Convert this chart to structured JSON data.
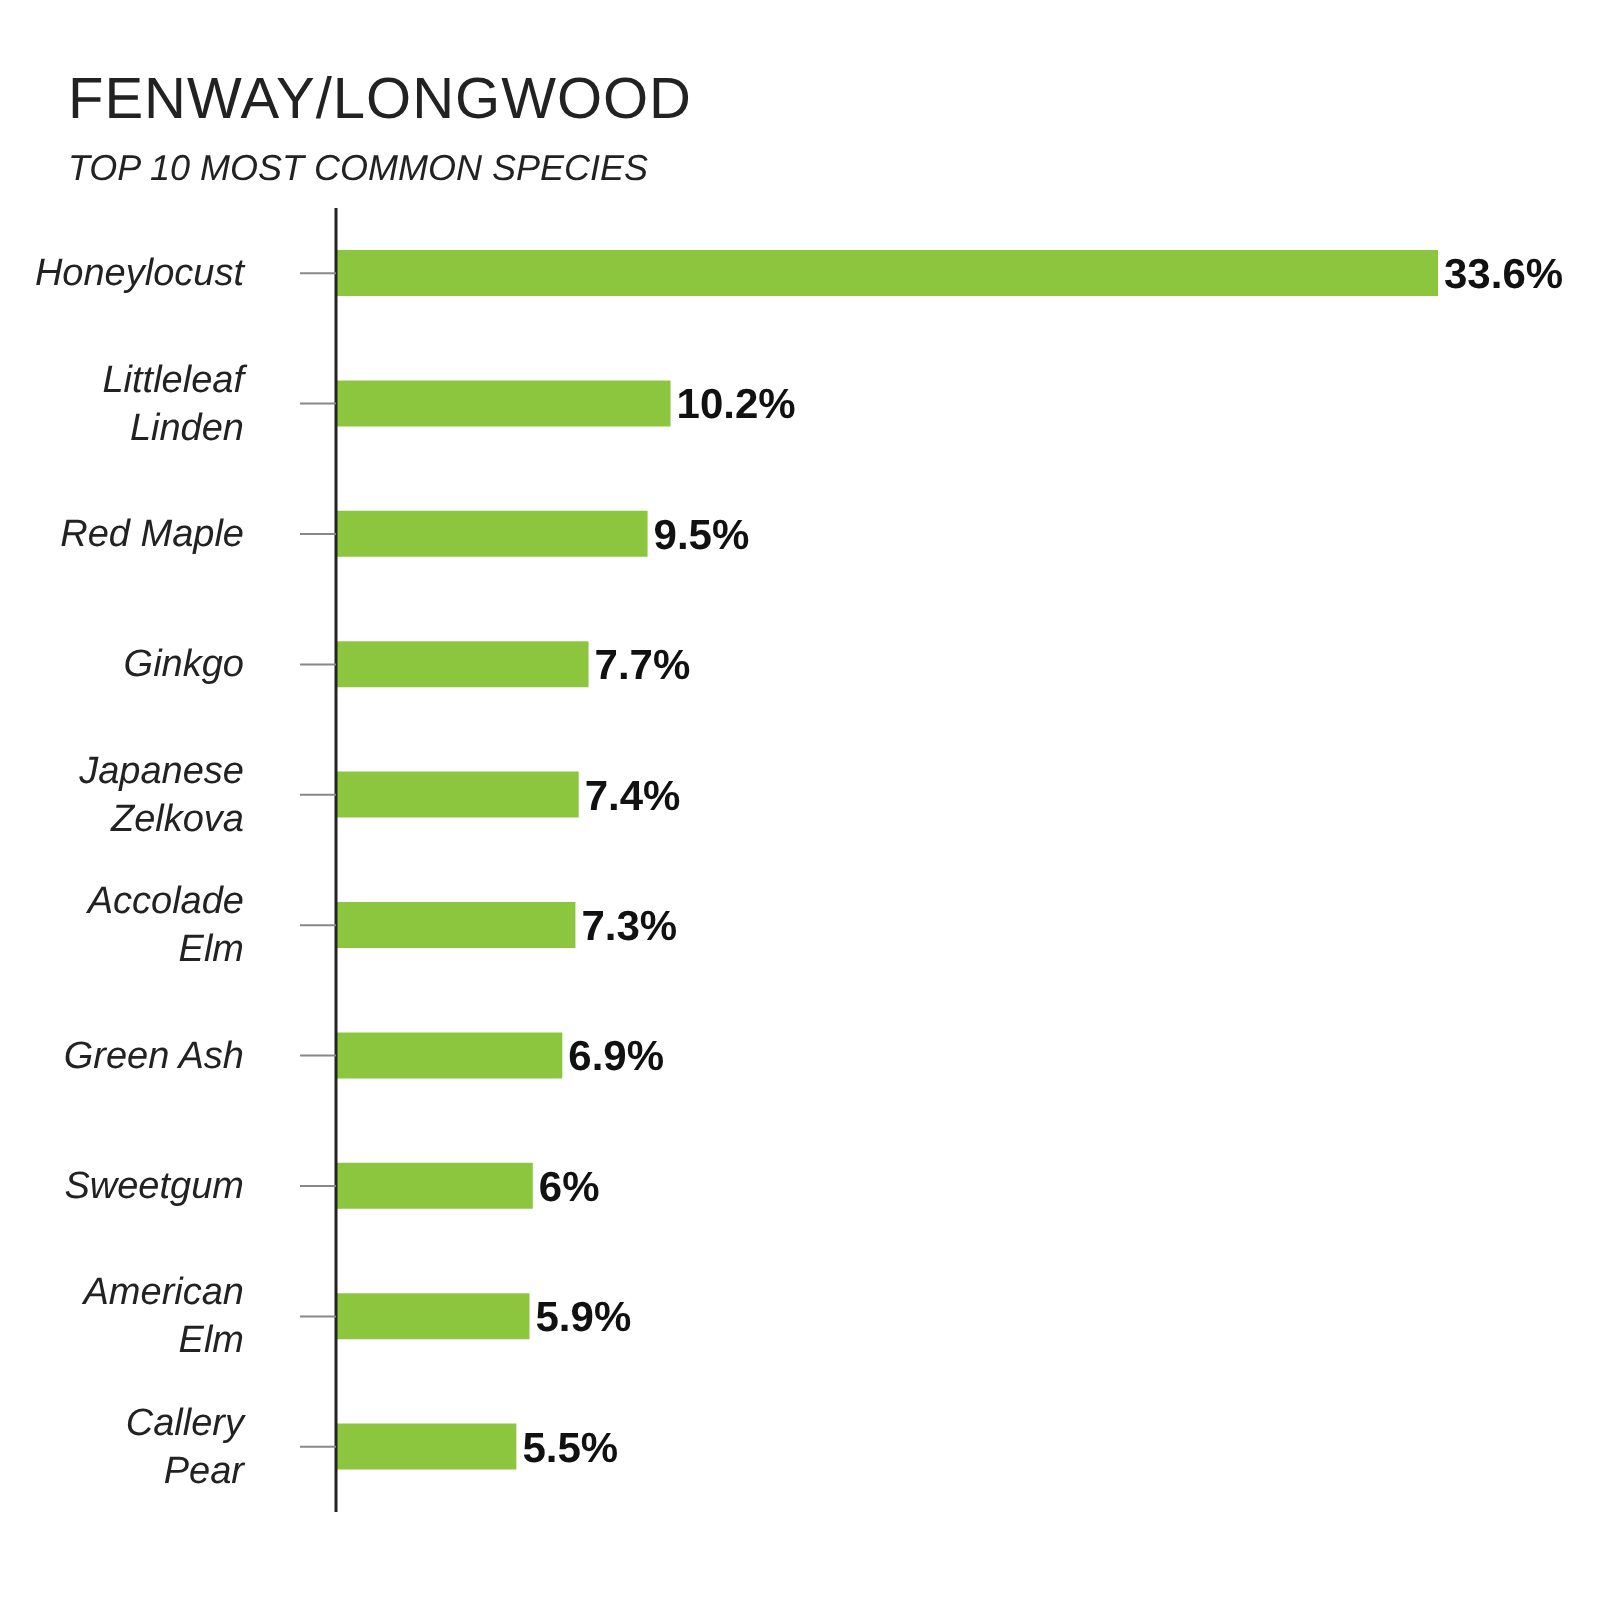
{
  "chart_data": {
    "type": "bar",
    "orientation": "horizontal",
    "title": "FENWAY/LONGWOOD",
    "subtitle": "TOP 10 MOST COMMON SPECIES",
    "categories": [
      "Honeylocust",
      "Littleleaf Linden",
      "Red Maple",
      "Ginkgo",
      "Japanese Zelkova",
      "Accolade Elm",
      "Green Ash",
      "Sweetgum",
      "American Elm",
      "Callery Pear"
    ],
    "values": [
      33.6,
      10.2,
      9.5,
      7.7,
      7.4,
      7.3,
      6.9,
      6,
      5.9,
      5.5
    ],
    "value_labels": [
      "33.6%",
      "10.2%",
      "9.5%",
      "7.7%",
      "7.4%",
      "7.3%",
      "6.9%",
      "6%",
      "5.9%",
      "5.5%"
    ],
    "color": "#8cc63f",
    "grid": false,
    "legend": false
  }
}
